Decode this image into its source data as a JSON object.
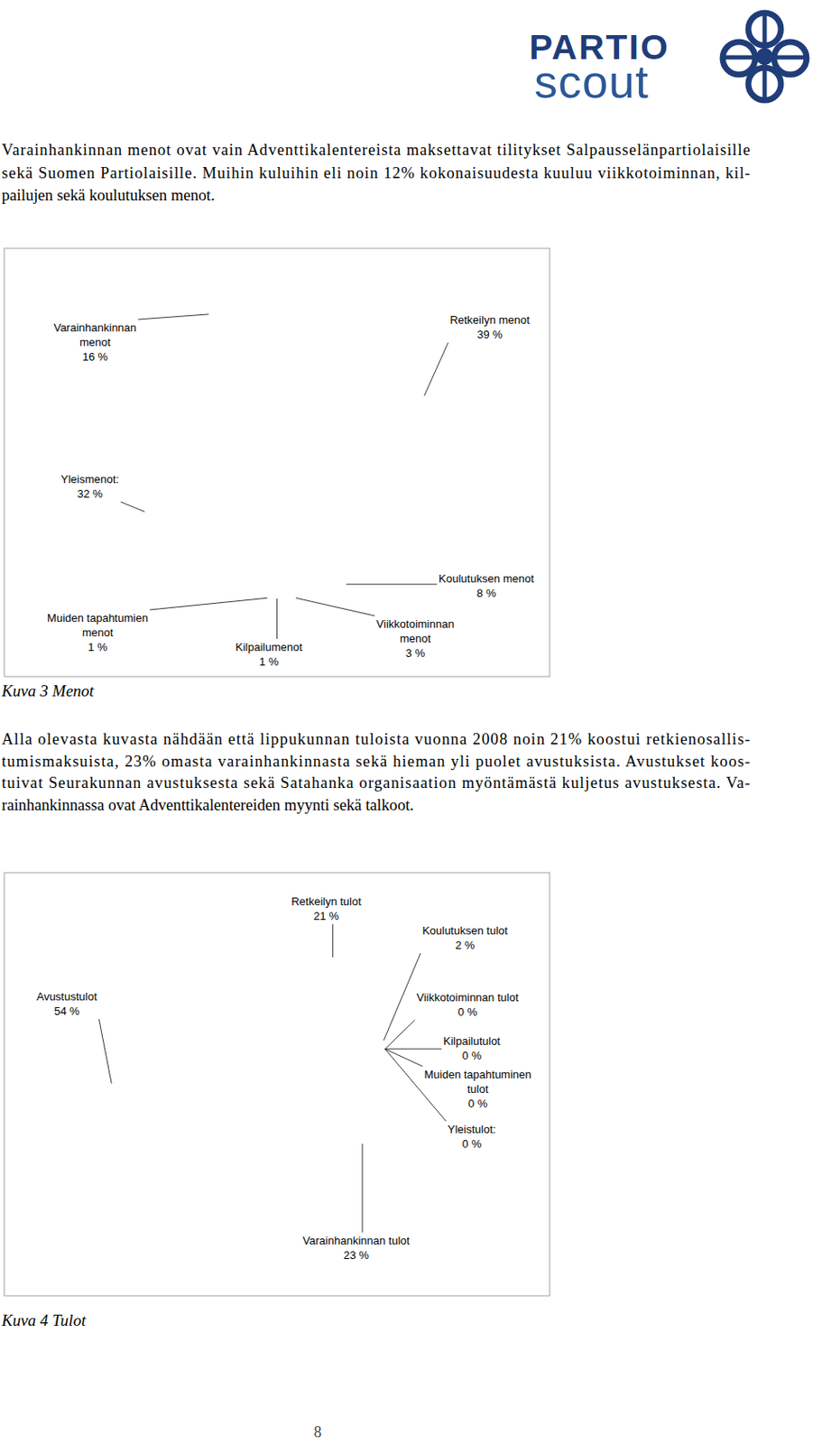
{
  "logo": {
    "name": "PARTIO",
    "sub": "scout"
  },
  "paragraphs": [
    [
      "Varainhankinnan menot ovat vain Adventtikalentereista maksettavat tilitykset Salpausselänpartiolaisille",
      "sekä Suomen Partiolaisille. Muihin kuluihin eli noin 12% kokonaisuudesta kuuluu viikkotoiminnan, kil-",
      "pailujen sekä koulutuksen menot."
    ],
    [
      "Alla olevasta kuvasta nähdään että lippukunnan tuloista vuonna 2008 noin 21% koostui retkienosallis-",
      "tumismaksuista, 23% omasta varainhankinnasta sekä hieman yli puolet avustuksista. Avustukset koos-",
      "tuivat Seurakunnan avustuksesta sekä Satahanka organisaation myöntämästä kuljetus avustuksesta. Va-",
      "rainhankinnassa ovat Adventtikalentereiden myynti sekä talkoot."
    ]
  ],
  "chart_data": [
    {
      "type": "pie",
      "title": "Kuva 3 Menot",
      "categories": [
        "Retkeilyn menot",
        "Koulutuksen menot",
        "Viikkotoiminnan menot",
        "Kilpailumenot",
        "Muiden tapahtumien menot",
        "Yleismenot:",
        "Varainhankinnan menot"
      ],
      "values": [
        39,
        8,
        3,
        1,
        1,
        32,
        16
      ],
      "value_labels": [
        "39 %",
        "8 %",
        "3 %",
        "1 %",
        "1 %",
        "32 %",
        "16 %"
      ],
      "colors": [
        "#9999ff",
        "#993366",
        "#ffffcc",
        "#ccffff",
        "#660066",
        "#00ffff",
        "#0066cc"
      ],
      "data_labels": true
    },
    {
      "type": "pie",
      "title": "Kuva 4 Tulot",
      "categories": [
        "Retkeilyn tulot",
        "Koulutuksen tulot",
        "Viikkotoiminnan tulot",
        "Kilpailutulot",
        "Muiden tapahtuminen tulot",
        "Yleistulot:",
        "Varainhankinnan tulot",
        "Avustustulot"
      ],
      "values": [
        21,
        2,
        0,
        0,
        0,
        0,
        23,
        54
      ],
      "value_labels": [
        "21 %",
        "2 %",
        "0 %",
        "0 %",
        "0 %",
        "0 %",
        "23 %",
        "54 %"
      ],
      "colors": [
        "#9999ff",
        "#993366",
        "#ffffcc",
        "#ccffff",
        "#660066",
        "#00ffff",
        "#0066cc",
        "#ccccff"
      ],
      "data_labels": true
    }
  ],
  "page_number": 8
}
